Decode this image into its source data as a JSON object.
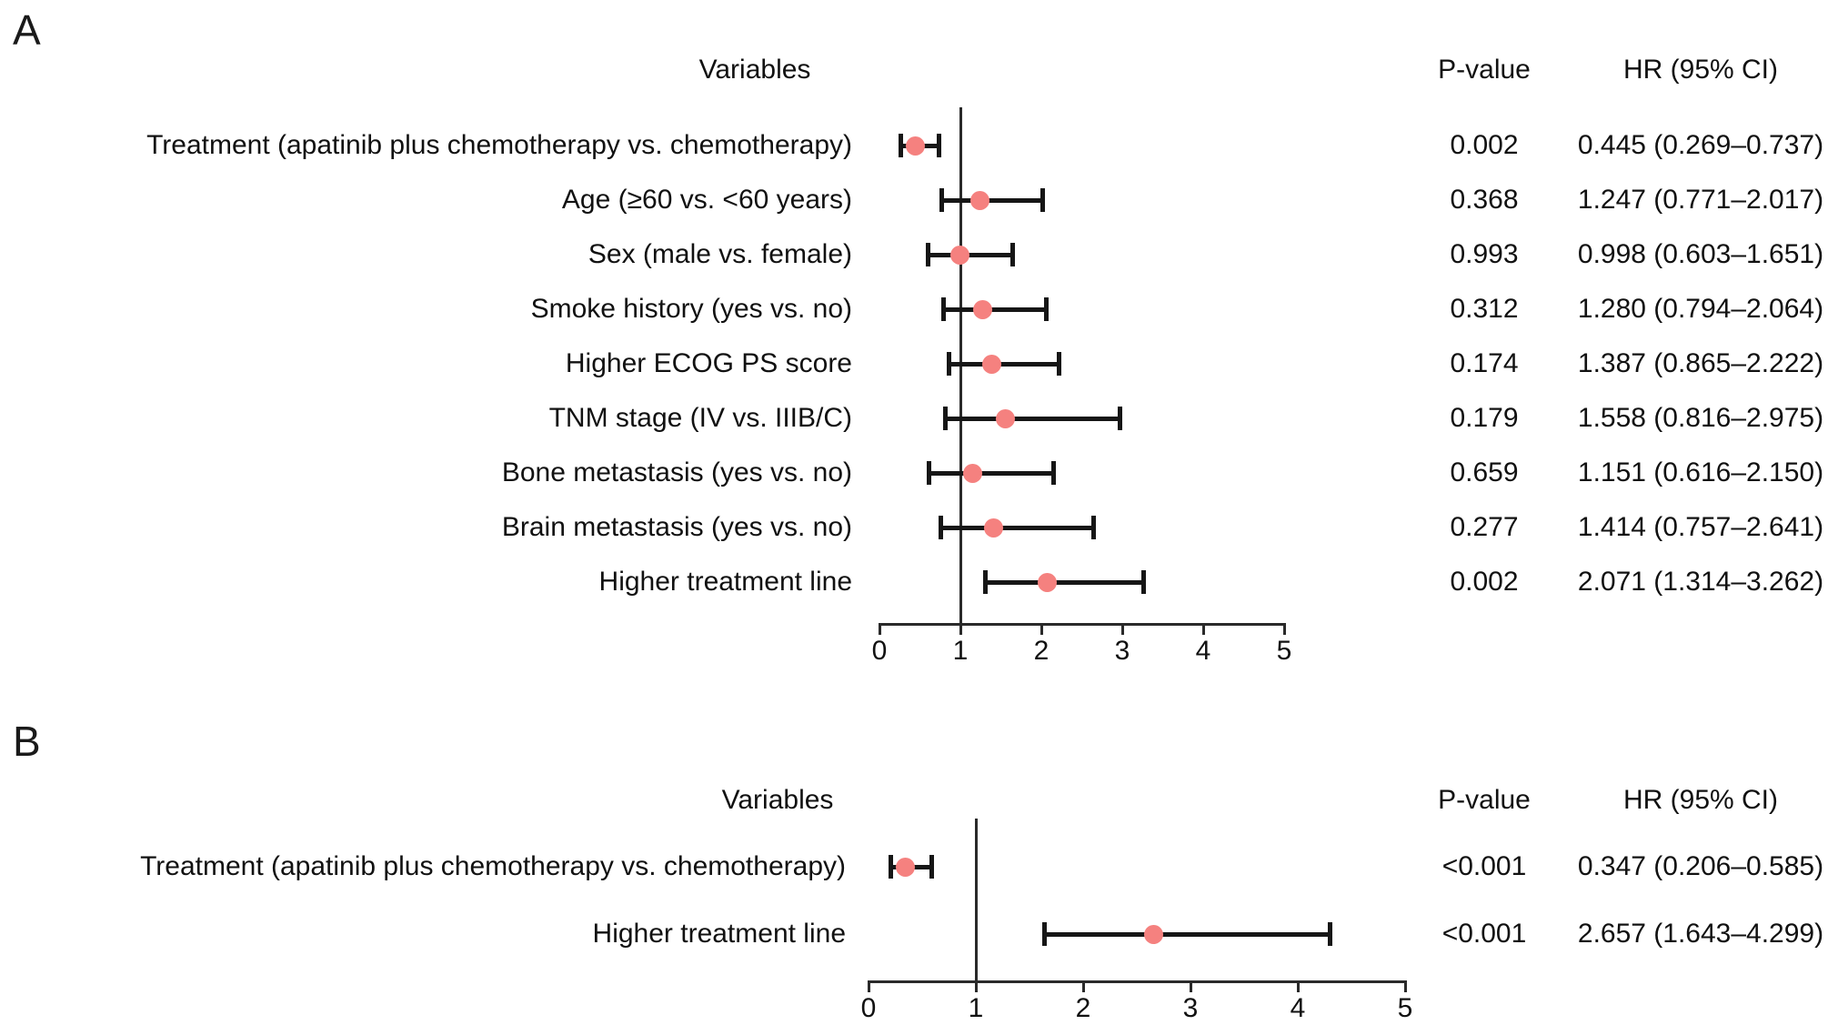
{
  "figure_background": "#ffffff",
  "colors": {
    "marker": "#f5817f",
    "error_bar": "#161616",
    "axis": "#2a2a2a",
    "text": "#111111"
  },
  "chart_data": [
    {
      "type": "forest",
      "panel_label": "A",
      "headers": {
        "variables": "Variables",
        "p_value": "P-value",
        "hr_ci": "HR (95% CI)"
      },
      "axis": {
        "min": 0,
        "max": 5,
        "ticks": [
          "0",
          "1",
          "2",
          "3",
          "4",
          "5"
        ],
        "reference_line": 1,
        "grid": false
      },
      "rows": [
        {
          "variable": "Treatment (apatinib plus chemotherapy vs. chemotherapy)",
          "p_value": "0.002",
          "hr": 0.445,
          "ci_low": 0.269,
          "ci_high": 0.737,
          "hr_ci_text": "0.445 (0.269–0.737)"
        },
        {
          "variable": "Age (≥60 vs. <60 years)",
          "p_value": "0.368",
          "hr": 1.247,
          "ci_low": 0.771,
          "ci_high": 2.017,
          "hr_ci_text": "1.247 (0.771–2.017)"
        },
        {
          "variable": "Sex (male vs. female)",
          "p_value": "0.993",
          "hr": 0.998,
          "ci_low": 0.603,
          "ci_high": 1.651,
          "hr_ci_text": "0.998 (0.603–1.651)"
        },
        {
          "variable": "Smoke history (yes vs. no)",
          "p_value": "0.312",
          "hr": 1.28,
          "ci_low": 0.794,
          "ci_high": 2.064,
          "hr_ci_text": "1.280 (0.794–2.064)"
        },
        {
          "variable": "Higher ECOG PS score",
          "p_value": "0.174",
          "hr": 1.387,
          "ci_low": 0.865,
          "ci_high": 2.222,
          "hr_ci_text": "1.387 (0.865–2.222)"
        },
        {
          "variable": "TNM stage (IV vs. IIIB/C)",
          "p_value": "0.179",
          "hr": 1.558,
          "ci_low": 0.816,
          "ci_high": 2.975,
          "hr_ci_text": "1.558 (0.816–2.975)"
        },
        {
          "variable": "Bone metastasis (yes vs. no)",
          "p_value": "0.659",
          "hr": 1.151,
          "ci_low": 0.616,
          "ci_high": 2.15,
          "hr_ci_text": "1.151 (0.616–2.150)"
        },
        {
          "variable": "Brain metastasis (yes vs. no)",
          "p_value": "0.277",
          "hr": 1.414,
          "ci_low": 0.757,
          "ci_high": 2.641,
          "hr_ci_text": "1.414 (0.757–2.641)"
        },
        {
          "variable": "Higher treatment line",
          "p_value": "0.002",
          "hr": 2.071,
          "ci_low": 1.314,
          "ci_high": 3.262,
          "hr_ci_text": "2.071 (1.314–3.262)"
        }
      ]
    },
    {
      "type": "forest",
      "panel_label": "B",
      "headers": {
        "variables": "Variables",
        "p_value": "P-value",
        "hr_ci": "HR (95% CI)"
      },
      "axis": {
        "min": 0,
        "max": 5,
        "ticks": [
          "0",
          "1",
          "2",
          "3",
          "4",
          "5"
        ],
        "reference_line": 1,
        "grid": false
      },
      "rows": [
        {
          "variable": "Treatment (apatinib plus chemotherapy vs. chemotherapy)",
          "p_value": "<0.001",
          "hr": 0.347,
          "ci_low": 0.206,
          "ci_high": 0.585,
          "hr_ci_text": "0.347 (0.206–0.585)"
        },
        {
          "variable": "Higher treatment line",
          "p_value": "<0.001",
          "hr": 2.657,
          "ci_low": 1.643,
          "ci_high": 4.299,
          "hr_ci_text": "2.657 (1.643–4.299)"
        }
      ]
    }
  ]
}
